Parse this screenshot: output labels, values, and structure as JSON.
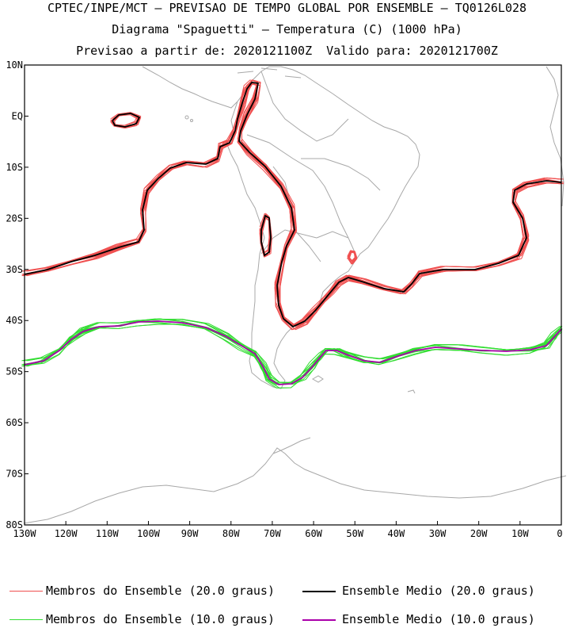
{
  "header": {
    "line1": "CPTEC/INPE/MCT – PREVISAO DE TEMPO GLOBAL POR ENSEMBLE – TQ0126L028",
    "line2": "Diagrama \"Spaguetti\" – Temperatura (C) (1000 hPa)",
    "line3": "Previsao a partir de: 2020121100Z  Valido para: 2020121700Z"
  },
  "axes": {
    "lat_ticks": [
      "10N",
      "EQ",
      "10S",
      "20S",
      "30S",
      "40S",
      "50S",
      "60S",
      "70S",
      "80S"
    ],
    "lon_ticks": [
      "130W",
      "120W",
      "110W",
      "100W",
      "90W",
      "80W",
      "70W",
      "60W",
      "50W",
      "40W",
      "30W",
      "20W",
      "10W",
      "0"
    ]
  },
  "legend": [
    {
      "label": "Membros do Ensemble (20.0 graus)",
      "color": "#f05050"
    },
    {
      "label": "Ensemble Medio (20.0 graus)",
      "color": "#000000"
    },
    {
      "label": "Membros do Ensemble (10.0 graus)",
      "color": "#33dd33"
    },
    {
      "label": "Ensemble Medio (10.0 graus)",
      "color": "#aa00aa"
    }
  ],
  "colors": {
    "coast": "#a8a8a8",
    "member20": "#f05050",
    "mean20": "#000000",
    "member10": "#33dd33",
    "mean10": "#aa00aa"
  }
}
